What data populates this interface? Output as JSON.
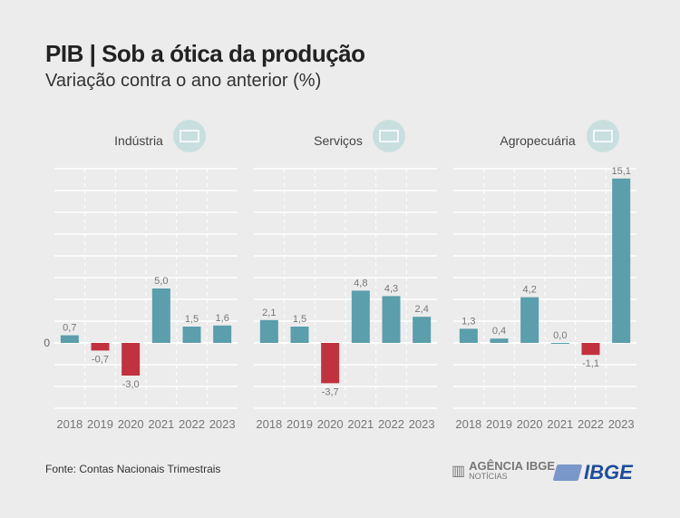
{
  "header": {
    "title": "PIB | Sob a ótica da produção",
    "subtitle": "Variação contra o ano anterior (%)"
  },
  "footer": {
    "source": "Fonte: Contas Nacionais Trimestrais",
    "agency_line1": "AGÊNCIA IBGE",
    "agency_line2": "NOTÍCIAS",
    "brand": "IBGE"
  },
  "colors": {
    "positive": "#5b9eac",
    "negative": "#c1323f",
    "icon_bg": "#c9dfdf"
  },
  "chart_data": [
    {
      "type": "bar",
      "title": "Indústria",
      "icon": "factory-icon",
      "categories": [
        "2018",
        "2019",
        "2020",
        "2021",
        "2022",
        "2023"
      ],
      "values": [
        0.7,
        -0.7,
        -3.0,
        5.0,
        1.5,
        1.6
      ],
      "labels": [
        "0,7",
        "-0,7",
        "-3,0",
        "5,0",
        "1,5",
        "1,6"
      ],
      "ylim": [
        -6,
        16
      ],
      "zero_label": "0",
      "grid": true
    },
    {
      "type": "bar",
      "title": "Serviços",
      "icon": "service-agent-icon",
      "categories": [
        "2018",
        "2019",
        "2020",
        "2021",
        "2022",
        "2023"
      ],
      "values": [
        2.1,
        1.5,
        -3.7,
        4.8,
        4.3,
        2.4
      ],
      "labels": [
        "2,1",
        "1,5",
        "-3,7",
        "4,8",
        "4,3",
        "2,4"
      ],
      "ylim": [
        -6,
        16
      ],
      "grid": true
    },
    {
      "type": "bar",
      "title": "Agropecuária",
      "icon": "plant-icon",
      "categories": [
        "2018",
        "2019",
        "2020",
        "2021",
        "2022",
        "2023"
      ],
      "values": [
        1.3,
        0.4,
        4.2,
        0.0,
        -1.1,
        15.1
      ],
      "labels": [
        "1,3",
        "0,4",
        "4,2",
        "0,0",
        "-1,1",
        "15,1"
      ],
      "ylim": [
        -6,
        16
      ],
      "grid": true
    }
  ]
}
